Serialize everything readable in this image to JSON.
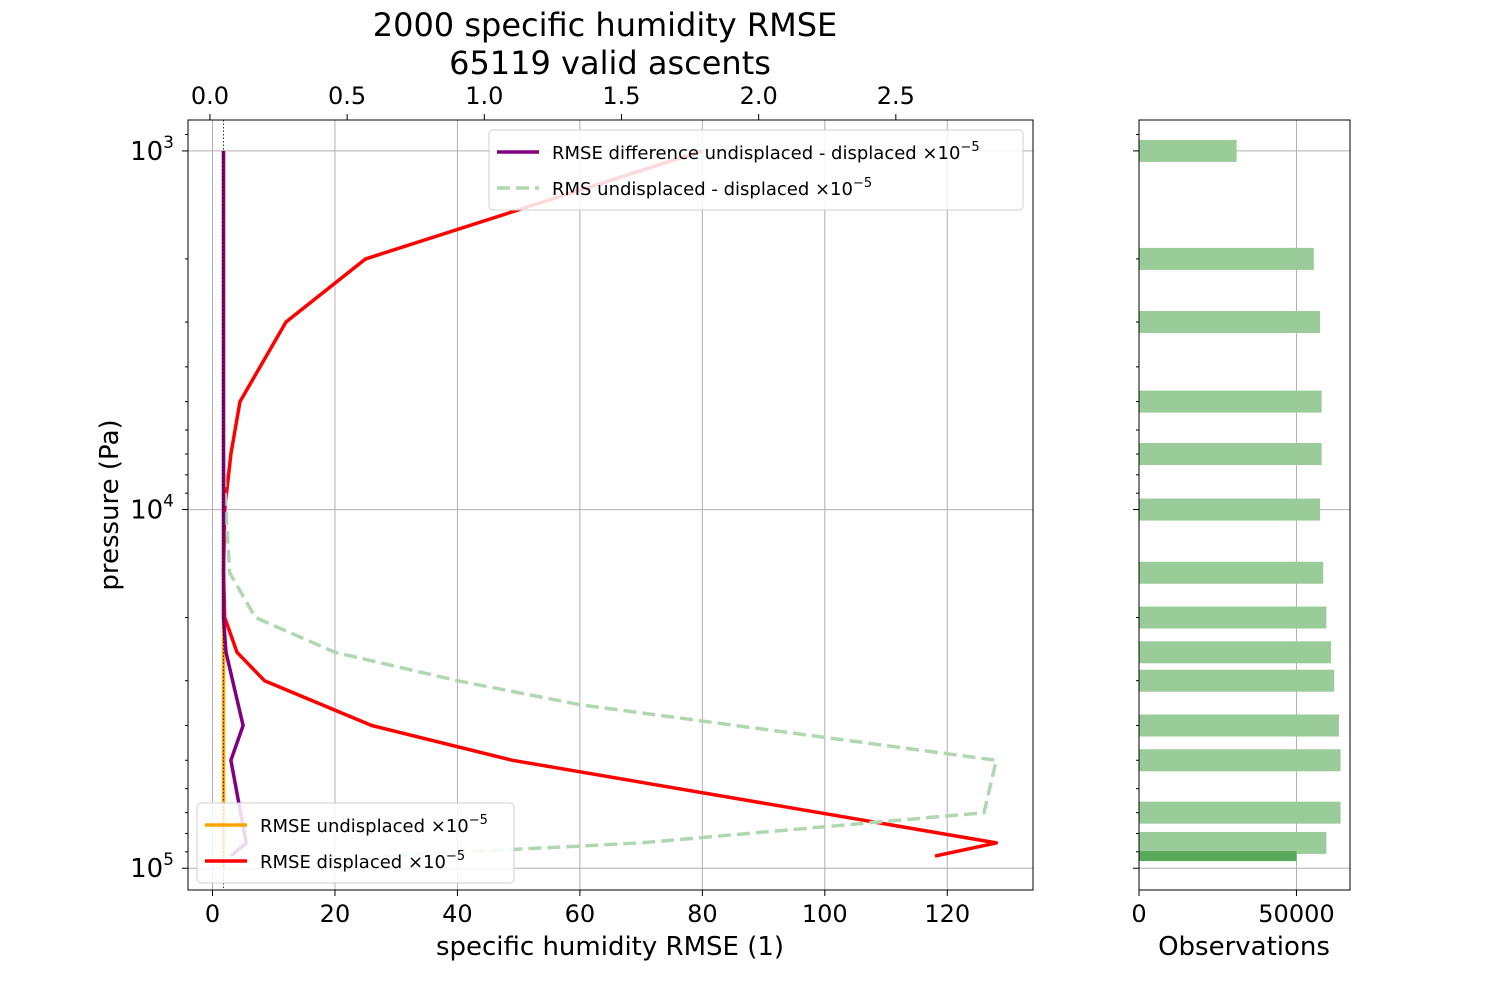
{
  "chart_data": [
    {
      "type": "line",
      "title": "2000 specific humidity RMSE",
      "subtitle": "65119 valid ascents",
      "xlabel": "specific humidity RMSE (1)",
      "ylabel": "pressure (Pa)",
      "xlim": [
        -4,
        134
      ],
      "x2lim": [
        -0.08,
        3.0
      ],
      "ylim_log": [
        115000,
        820
      ],
      "y_scale": "log",
      "grid": true,
      "x_ticks": [
        0,
        20,
        40,
        60,
        80,
        100,
        120
      ],
      "x2_ticks": [
        "0.0",
        "0.5",
        "1.0",
        "1.5",
        "2.0",
        "2.5"
      ],
      "y_ticks": [
        {
          "value": 1000,
          "base": "10",
          "exp": "3"
        },
        {
          "value": 10000,
          "base": "10",
          "exp": "4"
        },
        {
          "value": 100000,
          "base": "10",
          "exp": "5"
        }
      ],
      "legend_upper": {
        "placement": "top-right",
        "entries": [
          {
            "label": "RMSE difference undisplaced - displaced ×10",
            "exp": "−5",
            "color": "#800080",
            "style": "solid"
          },
          {
            "label": "RMS undisplaced - displaced ×10",
            "exp": "−5",
            "color": "#b0d8b0",
            "style": "dashed"
          }
        ]
      },
      "legend_lower": {
        "placement": "bottom-left",
        "entries": [
          {
            "label": "RMSE undisplaced ×10",
            "exp": "−5",
            "color": "#ffa500",
            "style": "solid"
          },
          {
            "label": "RMSE displaced ×10",
            "exp": "−5",
            "color": "#ff0000",
            "style": "solid"
          }
        ]
      },
      "series": [
        {
          "name": "RMSE undisplaced ×10−5",
          "color": "#ffa500",
          "style": "solid",
          "points": [
            [
              1.8,
              1000
            ],
            [
              1.8,
              100000
            ]
          ]
        },
        {
          "name": "RMSE displaced ×10−5",
          "color": "#ff0000",
          "style": "solid",
          "points": [
            [
              80,
              1000
            ],
            [
              25,
              2000
            ],
            [
              12,
              3000
            ],
            [
              4.5,
              5000
            ],
            [
              3,
              7000
            ],
            [
              2,
              10000
            ],
            [
              1.8,
              15000
            ],
            [
              2,
              20000
            ],
            [
              4,
              25000
            ],
            [
              8.5,
              30000
            ],
            [
              26,
              40000
            ],
            [
              49,
              50000
            ],
            [
              128,
              85000
            ],
            [
              118,
              92500
            ]
          ]
        },
        {
          "name": "RMSE difference undisplaced - displaced ×10−5",
          "color": "#800080",
          "style": "solid",
          "points": [
            [
              1.8,
              1000
            ],
            [
              1.8,
              5000
            ],
            [
              1.8,
              10000
            ],
            [
              1.8,
              20000
            ],
            [
              2.2,
              25000
            ],
            [
              5,
              40000
            ],
            [
              3,
              50000
            ],
            [
              5.5,
              85000
            ],
            [
              3,
              92500
            ]
          ]
        },
        {
          "name": "RMS undisplaced - displaced ×10−5",
          "color": "#b0d8b0",
          "style": "dashed",
          "points": [
            [
              1.8,
              1000
            ],
            [
              1.8,
              7000
            ],
            [
              2.2,
              10000
            ],
            [
              2.8,
              15000
            ],
            [
              7,
              20000
            ],
            [
              20,
              25000
            ],
            [
              40,
              30000
            ],
            [
              60,
              35000
            ],
            [
              128,
              50000
            ],
            [
              126,
              70000
            ],
            [
              70,
              85000
            ],
            [
              28,
              92500
            ]
          ]
        },
        {
          "name": "zero reference (dotted)",
          "color": "#000000",
          "style": "dotted",
          "points": [
            [
              1.8,
              820
            ],
            [
              1.8,
              115000
            ]
          ]
        }
      ]
    },
    {
      "type": "bar",
      "orientation": "horizontal",
      "xlabel": "Observations",
      "xlim": [
        0,
        67000
      ],
      "x_ticks": [
        0,
        50000
      ],
      "x_tick_labels": [
        "0",
        "50000"
      ],
      "grid": true,
      "levels_pa": [
        1000,
        2000,
        3000,
        5000,
        7000,
        10000,
        15000,
        20000,
        25000,
        30000,
        40000,
        50000,
        70000,
        85000,
        92500
      ],
      "values": [
        31000,
        55500,
        57500,
        58000,
        58000,
        57500,
        58500,
        59500,
        61000,
        62000,
        63500,
        64000,
        64000,
        59500,
        50000
      ],
      "colors": [
        "#99cc99",
        "#99cc99",
        "#99cc99",
        "#99cc99",
        "#99cc99",
        "#99cc99",
        "#99cc99",
        "#99cc99",
        "#99cc99",
        "#99cc99",
        "#99cc99",
        "#99cc99",
        "#99cc99",
        "#99cc99",
        "#5aa95a"
      ]
    }
  ]
}
